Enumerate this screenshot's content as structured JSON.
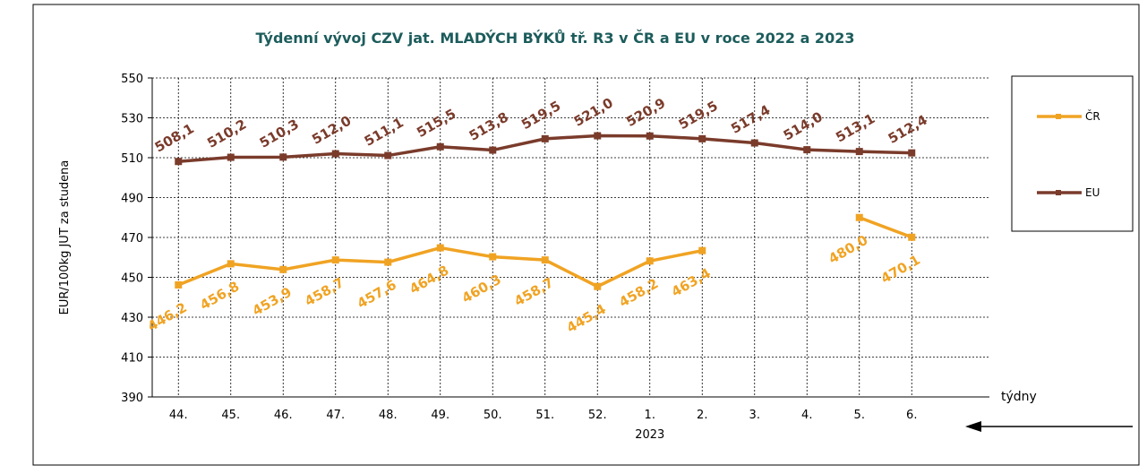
{
  "chart_data": {
    "type": "line",
    "title": "Týdenní vývoj CZV jat. MLADÝCH BÝKŮ tř. R3  v ČR a EU v roce 2022 a 2023",
    "y_label": "EUR/100kg  JUT za studena",
    "x_label": "týdny",
    "x_annotation": "2023",
    "categories": [
      "44.",
      "45.",
      "46.",
      "47.",
      "48.",
      "49.",
      "50.",
      "51.",
      "52.",
      "1.",
      "2.",
      "3.",
      "4.",
      "5.",
      "6."
    ],
    "series": [
      {
        "name": "ČR",
        "color": "#f0a323",
        "values": [
          446.2,
          456.8,
          453.9,
          458.7,
          457.6,
          464.8,
          460.3,
          458.7,
          445.4,
          458.2,
          463.4,
          null,
          null,
          480.0,
          470.1
        ],
        "value_labels": [
          "446,2",
          "456,8",
          "453,9",
          "458,7",
          "457,6",
          "464,8",
          "460,3",
          "458,7",
          "445,4",
          "458,2",
          "463,4",
          null,
          null,
          "480,0",
          "470,1"
        ]
      },
      {
        "name": "EU",
        "color": "#7a3b2b",
        "values": [
          508.1,
          510.2,
          510.3,
          512.0,
          511.1,
          515.5,
          513.8,
          519.5,
          521.0,
          520.9,
          519.5,
          517.4,
          514.0,
          513.1,
          512.4
        ],
        "value_labels": [
          "508,1",
          "510,2",
          "510,3",
          "512,0",
          "511,1",
          "515,5",
          "513,8",
          "519,5",
          "521,0",
          "520,9",
          "519,5",
          "517,4",
          "514,0",
          "513,1",
          "512,4"
        ]
      }
    ],
    "ylim": [
      390,
      550
    ],
    "yticks": [
      390,
      410,
      430,
      450,
      470,
      490,
      510,
      530,
      550
    ],
    "grid": true
  }
}
